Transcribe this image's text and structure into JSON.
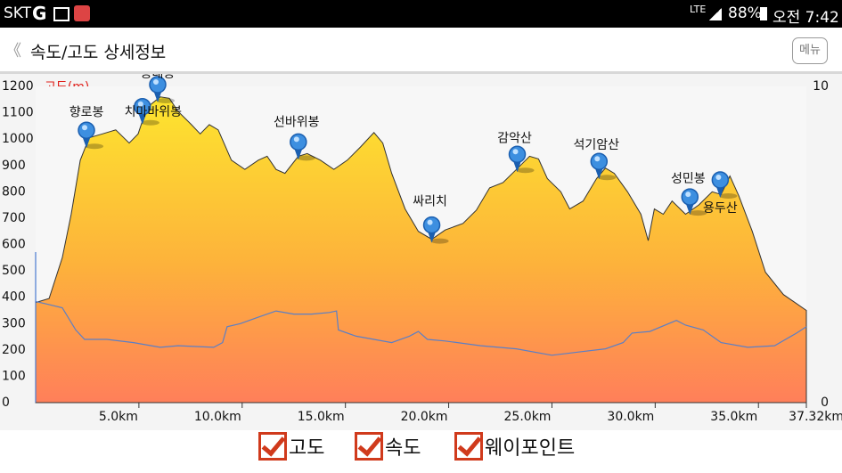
{
  "status_bar": {
    "carrier": "SKT",
    "network": "LTE",
    "battery": "88%",
    "time": "오전 7:42"
  },
  "header": {
    "title": "속도/고도 상세정보",
    "menu": "메뉴"
  },
  "chart_data": {
    "type": "area",
    "y_label": "고도(m)",
    "xlim": [
      0,
      37.32
    ],
    "xticks": [
      {
        "value": 5,
        "label": "5.0km"
      },
      {
        "value": 10,
        "label": "10.0km"
      },
      {
        "value": 15,
        "label": "15.0km"
      },
      {
        "value": 20,
        "label": "20.0km"
      },
      {
        "value": 25,
        "label": "25.0km"
      },
      {
        "value": 30,
        "label": "30.0km"
      },
      {
        "value": 35,
        "label": "35.0km"
      },
      {
        "value": 37.32,
        "label": "37.32km"
      }
    ],
    "ylim": [
      0,
      1200
    ],
    "yticks": [
      0,
      100,
      200,
      300,
      400,
      500,
      600,
      700,
      800,
      900,
      1000,
      1100,
      1200
    ],
    "y2lim": [
      0,
      10
    ],
    "y2ticks": [
      0,
      10
    ],
    "series": [
      {
        "name": "고도",
        "color": "#fbd02f",
        "x": [
          0,
          0.65,
          1.29,
          1.72,
          2.16,
          2.59,
          3.23,
          3.88,
          4.53,
          4.96,
          5.39,
          6.03,
          6.47,
          6.9,
          7.54,
          7.97,
          8.41,
          8.84,
          9.48,
          10.13,
          10.78,
          11.21,
          11.64,
          12.07,
          12.72,
          13.15,
          13.79,
          14.44,
          15.09,
          15.73,
          16.38,
          16.81,
          17.24,
          17.89,
          18.53,
          19.18,
          19.83,
          20.69,
          21.34,
          21.98,
          22.63,
          23.28,
          23.92,
          24.35,
          24.78,
          25.43,
          25.86,
          26.51,
          27.16,
          27.59,
          28.02,
          28.66,
          29.31,
          29.66,
          29.96,
          30.39,
          30.82,
          31.47,
          32.11,
          32.76,
          33.19,
          33.62,
          34.05,
          34.7,
          35.34,
          36.21,
          37.32
        ],
        "values": [
          380,
          395,
          550,
          715,
          920,
          1005,
          1020,
          1035,
          985,
          1020,
          1120,
          1160,
          1155,
          1105,
          1055,
          1020,
          1055,
          1035,
          920,
          885,
          920,
          935,
          885,
          870,
          935,
          945,
          920,
          885,
          920,
          970,
          1025,
          985,
          870,
          735,
          650,
          620,
          655,
          680,
          730,
          815,
          835,
          885,
          935,
          925,
          850,
          800,
          735,
          765,
          850,
          890,
          870,
          800,
          715,
          615,
          735,
          715,
          765,
          715,
          750,
          800,
          790,
          860,
          785,
          650,
          495,
          410,
          350
        ]
      },
      {
        "name": "속도",
        "color": "#5b7fc6",
        "axis": "y2",
        "x": [
          0,
          0.65,
          1.29,
          1.94,
          2.37,
          3.45,
          4.74,
          6.03,
          6.9,
          8.62,
          9.05,
          9.27,
          9.91,
          10.78,
          11.64,
          12.5,
          13.36,
          14.22,
          14.57,
          14.66,
          15.52,
          16.38,
          17.24,
          18.1,
          18.53,
          18.97,
          19.83,
          21.55,
          23.28,
          25,
          26.29,
          27.59,
          28.45,
          28.88,
          29.74,
          31.03,
          31.47,
          32.33,
          33.19,
          34.48,
          35.78,
          36.85,
          37.32
        ],
        "values": [
          3.2,
          3.1,
          3.0,
          2.3,
          2.0,
          2.0,
          1.9,
          1.75,
          1.8,
          1.75,
          1.9,
          2.4,
          2.5,
          2.7,
          2.9,
          2.8,
          2.8,
          2.85,
          2.9,
          2.3,
          2.1,
          2.0,
          1.9,
          2.1,
          2.25,
          2.0,
          1.95,
          1.8,
          1.7,
          1.5,
          1.6,
          1.7,
          1.9,
          2.2,
          2.25,
          2.6,
          2.45,
          2.3,
          1.9,
          1.75,
          1.8,
          2.2,
          2.4
        ]
      }
    ],
    "waypoints": {
      "name": "웨이포인트",
      "labels": [
        "향로봉",
        "치마바위봉",
        "봉대봉",
        "선바위봉",
        "싸리치",
        "감악산",
        "석기암산",
        "성민봉",
        "용두산"
      ],
      "x": [
        2.46,
        5.17,
        5.91,
        12.72,
        19.18,
        23.32,
        27.28,
        31.68,
        33.15
      ]
    }
  }
}
